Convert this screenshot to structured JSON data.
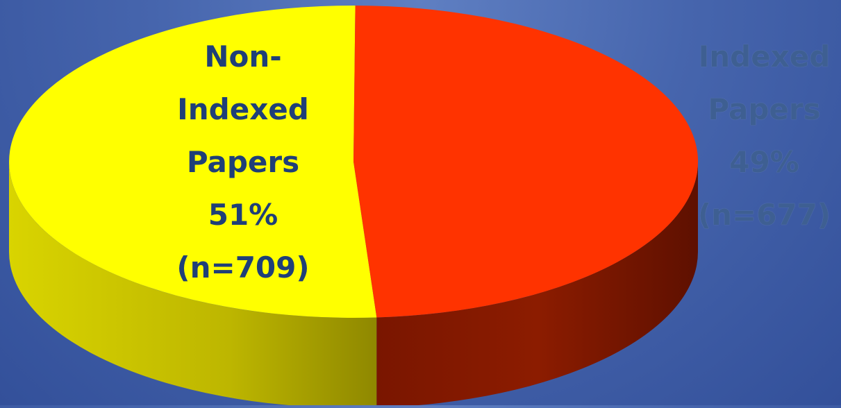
{
  "chart_data": {
    "type": "pie",
    "style": "3d",
    "slices": [
      {
        "name_lines": [
          "Non-",
          "Indexed",
          "Papers"
        ],
        "percent_label": "51%",
        "count_label": "(n=709)",
        "value": 709,
        "color": "#ffff00",
        "side_color": "#c9c400"
      },
      {
        "name_lines": [
          "Indexed",
          "Papers"
        ],
        "percent_label": "49%",
        "count_label": "(n=677)",
        "value": 677,
        "color": "#ff3300",
        "side_color": "#8a1a00"
      }
    ]
  }
}
